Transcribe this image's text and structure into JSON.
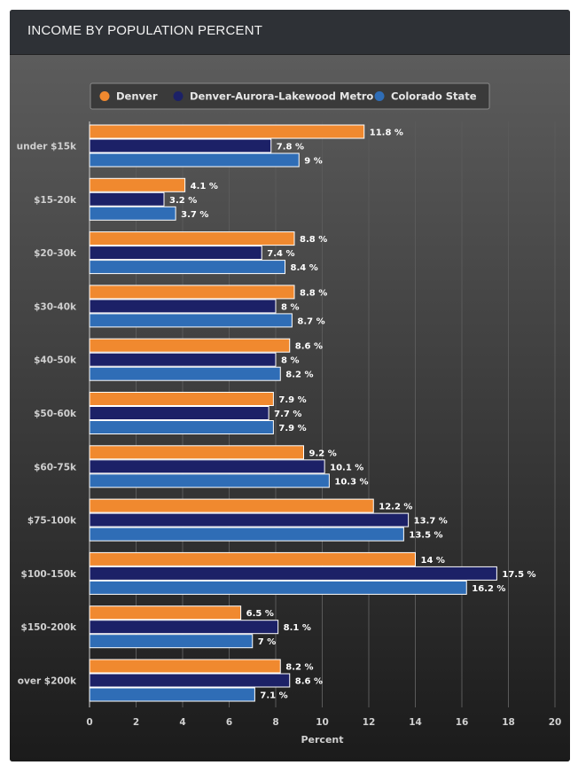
{
  "header": {
    "title": "INCOME BY POPULATION PERCENT"
  },
  "colors": {
    "series": [
      "#f0892f",
      "#1c2167",
      "#2f6db6"
    ],
    "gridline": "#5a5a5a",
    "bar_stroke": "#ffffff"
  },
  "chart_data": {
    "type": "bar",
    "orientation": "horizontal",
    "title": "",
    "xlabel": "Percent",
    "ylabel": "",
    "xlim": [
      0,
      20
    ],
    "xticks": [
      0,
      2,
      4,
      6,
      8,
      10,
      12,
      14,
      16,
      18,
      20
    ],
    "grid": true,
    "legend_position": "top",
    "categories": [
      "under $15k",
      "$15-20k",
      "$20-30k",
      "$30-40k",
      "$40-50k",
      "$50-60k",
      "$60-75k",
      "$75-100k",
      "$100-150k",
      "$150-200k",
      "over $200k"
    ],
    "series": [
      {
        "name": "Denver",
        "values": [
          11.8,
          4.1,
          8.8,
          8.8,
          8.6,
          7.9,
          9.2,
          12.2,
          14,
          6.5,
          8.2
        ]
      },
      {
        "name": "Denver-Aurora-Lakewood Metro",
        "values": [
          7.8,
          3.2,
          7.4,
          8,
          8,
          7.7,
          10.1,
          13.7,
          17.5,
          8.1,
          8.6
        ]
      },
      {
        "name": "Colorado State",
        "values": [
          9,
          3.7,
          8.4,
          8.7,
          8.2,
          7.9,
          10.3,
          13.5,
          16.2,
          7,
          7.1
        ]
      }
    ],
    "value_suffix": " %"
  }
}
